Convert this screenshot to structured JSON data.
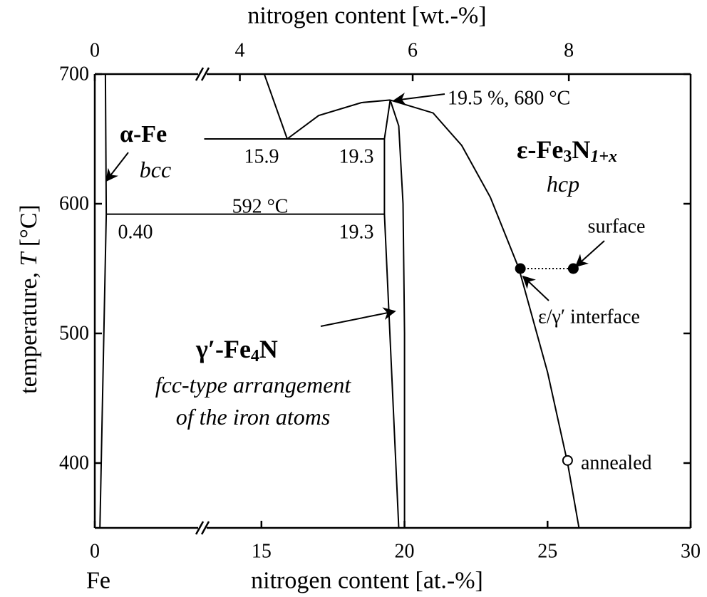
{
  "chart_data": {
    "type": "line",
    "x2label": "nitrogen content [wt.-%]",
    "xlabel": "nitrogen content [at.-%]",
    "ylabel": [
      "temperature, ",
      "T",
      " [°C]"
    ],
    "xlim": [
      0,
      30
    ],
    "xticks": [
      0,
      15,
      20,
      25,
      30
    ],
    "xbreak": [
      3.7,
      13
    ],
    "x2lim": [
      0,
      9.71
    ],
    "x2ticks": [
      0,
      4,
      6,
      8
    ],
    "ylim": [
      350,
      700
    ],
    "yticks": [
      400,
      500,
      600,
      700
    ],
    "color": "#000000",
    "series": [
      {
        "x": [
          0.18,
          0.4,
          0.37
        ],
        "values": [
          350,
          592,
          700
        ]
      },
      {
        "x": [
          0.4,
          19.3
        ],
        "values": [
          592,
          592
        ]
      },
      {
        "x": [
          13,
          19.3
        ],
        "values": [
          650,
          650
        ]
      },
      {
        "x": [
          15.1,
          15.9
        ],
        "values": [
          700,
          650
        ]
      },
      {
        "x": [
          15.9,
          17,
          18.5,
          19.5
        ],
        "values": [
          650,
          668,
          678,
          680
        ]
      },
      {
        "x": [
          19.8,
          19.3,
          19.3,
          19.5
        ],
        "values": [
          350,
          592,
          650,
          680
        ]
      },
      {
        "x": [
          19.5,
          19.8,
          19.95,
          20,
          20
        ],
        "values": [
          680,
          660,
          600,
          500,
          350
        ]
      },
      {
        "x": [
          19.5,
          21,
          22,
          23,
          24,
          25,
          25.7,
          26.1
        ],
        "values": [
          680,
          670,
          645,
          605,
          550,
          470,
          400,
          350
        ]
      },
      {
        "x": [
          24.05,
          25.9
        ],
        "values": [
          550,
          550
        ],
        "style": "dotted"
      }
    ],
    "points": [
      {
        "name": "surface",
        "x": 25.9,
        "y": 550,
        "filled": true
      },
      {
        "name": "ε/γ′ interface",
        "x": 24.05,
        "y": 550,
        "filled": true
      },
      {
        "name": "annealed",
        "x": 25.7,
        "y": 402,
        "filled": false
      }
    ],
    "phases": [
      {
        "name": [
          "α-Fe"
        ],
        "structure": [
          "bcc"
        ]
      },
      {
        "name": [
          "ε-Fe",
          "3",
          "N",
          "1+x"
        ],
        "structure": [
          "hcp"
        ]
      },
      {
        "name": [
          "γ′-Fe",
          "4",
          "N"
        ],
        "structure": [
          "fcc-type arrangement",
          "of the iron atoms"
        ]
      }
    ],
    "annotations": [
      "19.5 %, 680 °C",
      "592 °C",
      "15.9",
      "19.3",
      "19.3",
      "0.40",
      "Fe"
    ]
  }
}
